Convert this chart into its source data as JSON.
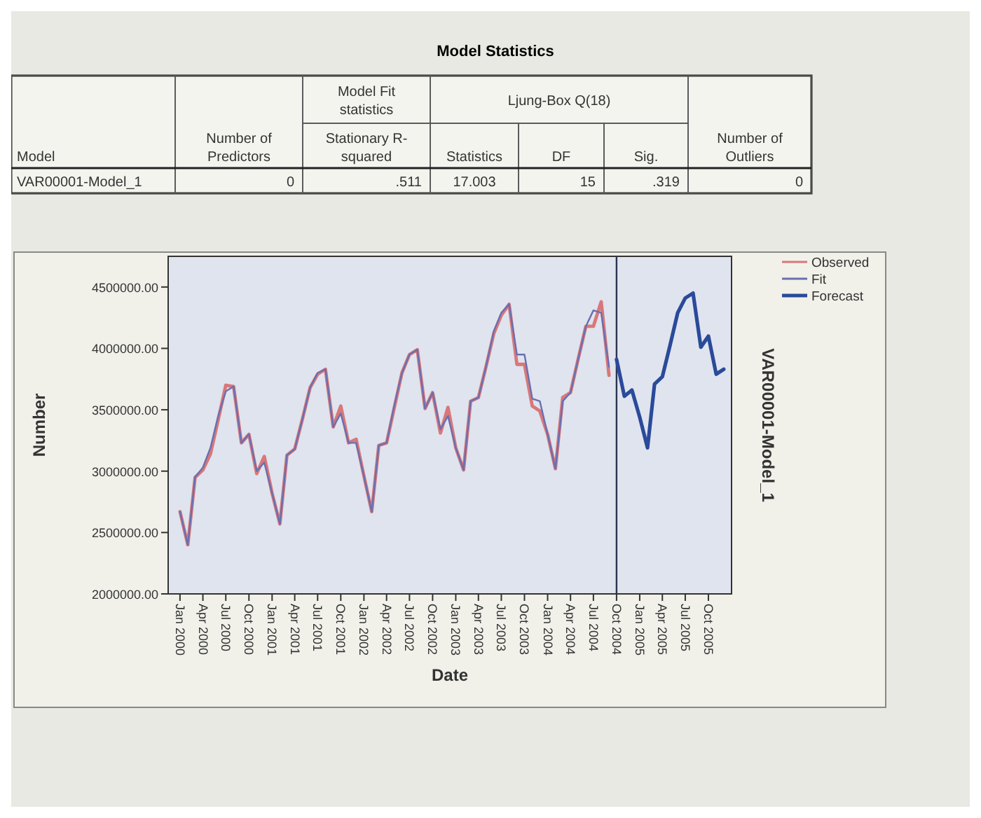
{
  "chart_data": [
    {
      "type": "other",
      "title": "Model Statistics",
      "annotations": [
        "Model",
        "Number of Predictors",
        "Model Fit statistics",
        "Ljung-Box Q(18)",
        "Number of Outliers",
        "Stationary R-squared",
        "Statistics",
        "DF",
        "Sig.",
        "VAR00001-Model_1",
        "0",
        ".511",
        "17.003",
        "15",
        ".319",
        "0"
      ]
    },
    {
      "type": "line",
      "y2label": "VAR00001-Model_1",
      "xlabel": "Date",
      "ylabel": "Number",
      "legend": "top right",
      "marker": "none",
      "line_style": "solid",
      "xlim": [
        "1999-11-15",
        "2006-01"
      ],
      "xticks": [
        {
          "value": "2000-01",
          "label": "Jan 2000"
        },
        {
          "value": "2000-04",
          "label": "Apr 2000"
        },
        {
          "value": "2000-07",
          "label": "Jul 2000"
        },
        {
          "value": "2000-10",
          "label": "Oct 2000"
        },
        {
          "value": "2001-01",
          "label": "Jan 2001"
        },
        {
          "value": "2001-04",
          "label": "Apr 2001"
        },
        {
          "value": "2001-07",
          "label": "Jul 2001"
        },
        {
          "value": "2001-10",
          "label": "Oct 2001"
        },
        {
          "value": "2002-01",
          "label": "Jan 2002"
        },
        {
          "value": "2002-04",
          "label": "Apr 2002"
        },
        {
          "value": "2002-07",
          "label": "Jul 2002"
        },
        {
          "value": "2002-10",
          "label": "Oct 2002"
        },
        {
          "value": "2003-01",
          "label": "Jan 2003"
        },
        {
          "value": "2003-04",
          "label": "Apr 2003"
        },
        {
          "value": "2003-07",
          "label": "Jul 2003"
        },
        {
          "value": "2003-10",
          "label": "Oct 2003"
        },
        {
          "value": "2004-01",
          "label": "Jan 2004"
        },
        {
          "value": "2004-04",
          "label": "Apr 2004"
        },
        {
          "value": "2004-07",
          "label": "Jul 2004"
        },
        {
          "value": "2004-10",
          "label": "Oct 2004"
        },
        {
          "value": "2005-01",
          "label": "Jan 2005"
        },
        {
          "value": "2005-04",
          "label": "Apr 2005"
        },
        {
          "value": "2005-07",
          "label": "Jul 2005"
        },
        {
          "value": "2005-10",
          "label": "Oct 2005"
        }
      ],
      "ylim": [
        2000000,
        4750000
      ],
      "yticks": [
        {
          "value": 2000000,
          "label": "2000000.00"
        },
        {
          "value": 2500000,
          "label": "2500000.00"
        },
        {
          "value": 3000000,
          "label": "3000000.00"
        },
        {
          "value": 3500000,
          "label": "3500000.00"
        },
        {
          "value": 4000000,
          "label": "4000000.00"
        },
        {
          "value": 4500000,
          "label": "4500000.00"
        }
      ],
      "ref_lines": [
        {
          "axis": "x",
          "value": "2004-10",
          "color": "#2b3550"
        }
      ],
      "series": [
        {
          "name": "Observed",
          "color": "#d9777a",
          "x": [
            "2000-01",
            "2000-02",
            "2000-03",
            "2000-04",
            "2000-05",
            "2000-06",
            "2000-07",
            "2000-08",
            "2000-09",
            "2000-10",
            "2000-11",
            "2000-12",
            "2001-01",
            "2001-02",
            "2001-03",
            "2001-04",
            "2001-05",
            "2001-06",
            "2001-07",
            "2001-08",
            "2001-09",
            "2001-10",
            "2001-11",
            "2001-12",
            "2002-01",
            "2002-02",
            "2002-03",
            "2002-04",
            "2002-05",
            "2002-06",
            "2002-07",
            "2002-08",
            "2002-09",
            "2002-10",
            "2002-11",
            "2002-12",
            "2003-01",
            "2003-02",
            "2003-03",
            "2003-04",
            "2003-05",
            "2003-06",
            "2003-07",
            "2003-08",
            "2003-09",
            "2003-10",
            "2003-11",
            "2003-12",
            "2004-01",
            "2004-02",
            "2004-03",
            "2004-04",
            "2004-05",
            "2004-06",
            "2004-07",
            "2004-08",
            "2004-09"
          ],
          "values": [
            2670000,
            2400000,
            2950000,
            3010000,
            3140000,
            3420000,
            3700000,
            3690000,
            3230000,
            3300000,
            2980000,
            3120000,
            2820000,
            2570000,
            3130000,
            3180000,
            3420000,
            3680000,
            3790000,
            3830000,
            3360000,
            3530000,
            3230000,
            3260000,
            2960000,
            2670000,
            3210000,
            3230000,
            3510000,
            3800000,
            3950000,
            3990000,
            3510000,
            3640000,
            3310000,
            3520000,
            3190000,
            3010000,
            3570000,
            3600000,
            3850000,
            4120000,
            4270000,
            4360000,
            3870000,
            3870000,
            3530000,
            3490000,
            3300000,
            3020000,
            3600000,
            3640000,
            3910000,
            4180000,
            4180000,
            4380000,
            3780000
          ]
        },
        {
          "name": "Fit",
          "color": "#6a6fb0",
          "x": [
            "2000-01",
            "2000-02",
            "2000-03",
            "2000-04",
            "2000-05",
            "2000-06",
            "2000-07",
            "2000-08",
            "2000-09",
            "2000-10",
            "2000-11",
            "2000-12",
            "2001-01",
            "2001-02",
            "2001-03",
            "2001-04",
            "2001-05",
            "2001-06",
            "2001-07",
            "2001-08",
            "2001-09",
            "2001-10",
            "2001-11",
            "2001-12",
            "2002-01",
            "2002-02",
            "2002-03",
            "2002-04",
            "2002-05",
            "2002-06",
            "2002-07",
            "2002-08",
            "2002-09",
            "2002-10",
            "2002-11",
            "2002-12",
            "2003-01",
            "2003-02",
            "2003-03",
            "2003-04",
            "2003-05",
            "2003-06",
            "2003-07",
            "2003-08",
            "2003-09",
            "2003-10",
            "2003-11",
            "2003-12",
            "2004-01",
            "2004-02",
            "2004-03",
            "2004-04",
            "2004-05",
            "2004-06",
            "2004-07",
            "2004-08",
            "2004-09"
          ],
          "values": [
            2670000,
            2400000,
            2950000,
            3030000,
            3190000,
            3450000,
            3650000,
            3690000,
            3230000,
            3300000,
            3000000,
            3070000,
            2820000,
            2570000,
            3130000,
            3180000,
            3420000,
            3680000,
            3800000,
            3830000,
            3360000,
            3470000,
            3230000,
            3230000,
            2960000,
            2670000,
            3210000,
            3230000,
            3530000,
            3800000,
            3950000,
            3990000,
            3510000,
            3640000,
            3340000,
            3450000,
            3190000,
            3010000,
            3570000,
            3600000,
            3850000,
            4140000,
            4290000,
            4360000,
            3950000,
            3950000,
            3590000,
            3570000,
            3300000,
            3020000,
            3570000,
            3640000,
            3910000,
            4180000,
            4310000,
            4290000,
            3850000
          ]
        },
        {
          "name": "Forecast",
          "color": "#2a4a9a",
          "x": [
            "2004-10",
            "2004-11",
            "2004-12",
            "2005-01",
            "2005-02",
            "2005-03",
            "2005-04",
            "2005-05",
            "2005-06",
            "2005-07",
            "2005-08",
            "2005-09",
            "2005-10",
            "2005-11",
            "2005-12"
          ],
          "values": [
            3910000,
            3610000,
            3660000,
            3440000,
            3190000,
            3710000,
            3770000,
            4020000,
            4290000,
            4410000,
            4450000,
            4010000,
            4100000,
            3790000,
            3830000
          ]
        }
      ]
    }
  ]
}
